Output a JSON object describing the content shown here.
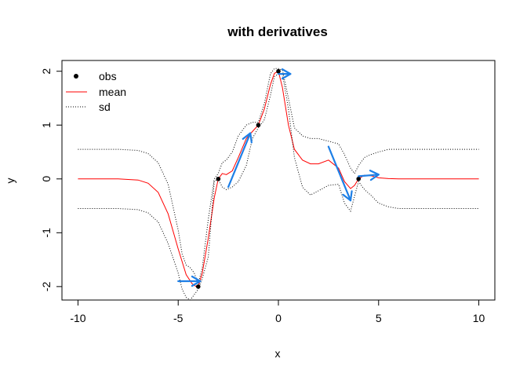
{
  "chart_data": {
    "type": "line",
    "title": "with derivatives",
    "xlabel": "x",
    "ylabel": "y",
    "xlim": [
      -10.8,
      10.8
    ],
    "ylim": [
      -2.25,
      2.2
    ],
    "x_ticks": [
      -10,
      -5,
      0,
      5,
      10
    ],
    "x_tick_labels": [
      "-10",
      "-5",
      "0",
      "5",
      "10"
    ],
    "y_ticks": [
      -2,
      -1,
      0,
      1,
      2
    ],
    "y_tick_labels": [
      "-2",
      "-1",
      "0",
      "1",
      "2"
    ],
    "grid": false,
    "legend": {
      "placement": "top-left",
      "entries": [
        {
          "label": "obs",
          "symbol": "point"
        },
        {
          "label": "mean",
          "symbol": "solid-line",
          "color": "#ff0000"
        },
        {
          "label": "sd",
          "symbol": "dotted-line",
          "color": "#000000"
        }
      ]
    },
    "series": [
      {
        "name": "mean",
        "color": "#ff0000",
        "style": "solid",
        "x": [
          -10,
          -8,
          -7,
          -6.5,
          -6,
          -5.5,
          -5,
          -4.6,
          -4.3,
          -4.1,
          -4,
          -3.8,
          -3.5,
          -3.2,
          -3,
          -2.8,
          -2.6,
          -2.3,
          -2,
          -1.6,
          -1.3,
          -1,
          -0.7,
          -0.4,
          -0.2,
          0,
          0.2,
          0.5,
          0.8,
          1.2,
          1.6,
          2,
          2.5,
          3,
          3.3,
          3.6,
          3.8,
          4,
          4.3,
          4.6,
          5,
          5.5,
          6,
          7,
          10
        ],
        "y": [
          0,
          0,
          -0.02,
          -0.08,
          -0.25,
          -0.65,
          -1.3,
          -1.78,
          -1.95,
          -2.0,
          -2.0,
          -1.75,
          -1.1,
          -0.35,
          0.0,
          0.1,
          0.08,
          0.15,
          0.4,
          0.75,
          0.88,
          1.0,
          1.3,
          1.75,
          1.96,
          2.0,
          1.7,
          1.0,
          0.55,
          0.35,
          0.28,
          0.28,
          0.35,
          0.2,
          -0.05,
          -0.18,
          -0.12,
          0.0,
          0.07,
          0.06,
          0.02,
          0.005,
          0,
          0,
          0
        ]
      },
      {
        "name": "sd",
        "color": "#000000",
        "style": "dotted",
        "x": [
          -10,
          -8,
          -7,
          -6.5,
          -6,
          -5.5,
          -5,
          -4.8,
          -4.6,
          -4.4,
          -4.2,
          -4,
          -3.8,
          -3.5,
          -3.2,
          -3,
          -2.8,
          -2.6,
          -2.3,
          -2,
          -1.6,
          -1.3,
          -1,
          -0.7,
          -0.4,
          -0.2,
          0,
          0.2,
          0.5,
          0.8,
          1.2,
          1.6,
          2,
          2.5,
          3,
          3.3,
          3.6,
          3.8,
          4,
          4.3,
          4.6,
          5,
          5.5,
          6,
          7,
          10
        ],
        "y": [
          0.55,
          0.55,
          0.53,
          0.47,
          0.3,
          -0.1,
          -0.95,
          -1.4,
          -1.6,
          -1.65,
          -1.75,
          -1.95,
          -1.65,
          -0.75,
          0.0,
          0.1,
          0.3,
          0.35,
          0.5,
          0.8,
          1.0,
          1.05,
          1.05,
          1.4,
          1.95,
          2.05,
          2.05,
          2.02,
          1.5,
          0.95,
          0.8,
          0.75,
          0.75,
          0.7,
          0.65,
          0.45,
          0.2,
          0.1,
          0.25,
          0.4,
          0.45,
          0.5,
          0.55,
          0.55,
          0.55,
          0.55
        ]
      },
      {
        "name": "sd",
        "color": "#000000",
        "style": "dotted",
        "x": [
          -10,
          -8,
          -7,
          -6.5,
          -6,
          -5.5,
          -5,
          -4.8,
          -4.6,
          -4.4,
          -4.2,
          -4,
          -3.8,
          -3.5,
          -3.2,
          -3,
          -2.8,
          -2.6,
          -2.3,
          -2,
          -1.6,
          -1.3,
          -1,
          -0.7,
          -0.4,
          -0.2,
          0,
          0.2,
          0.5,
          0.8,
          1.2,
          1.6,
          2,
          2.5,
          3,
          3.3,
          3.6,
          3.8,
          4,
          4.3,
          4.6,
          5,
          5.5,
          6,
          7,
          10
        ],
        "y": [
          -0.55,
          -0.55,
          -0.57,
          -0.63,
          -0.8,
          -1.2,
          -1.75,
          -2.05,
          -2.2,
          -2.25,
          -2.15,
          -2.05,
          -1.85,
          -1.45,
          -0.05,
          0.0,
          -0.15,
          -0.2,
          -0.15,
          -0.05,
          0.25,
          0.75,
          0.95,
          1.1,
          1.55,
          1.9,
          1.95,
          1.95,
          1.3,
          0.4,
          -0.15,
          -0.3,
          -0.22,
          -0.12,
          -0.1,
          -0.45,
          -0.6,
          -0.32,
          -0.05,
          -0.2,
          -0.3,
          -0.45,
          -0.52,
          -0.55,
          -0.55,
          -0.55
        ]
      }
    ],
    "points": {
      "name": "obs",
      "x": [
        -4,
        -3,
        -1,
        0,
        4
      ],
      "y": [
        -2,
        0,
        1,
        2,
        0
      ]
    },
    "derivative_arrows": {
      "color": "#1e7fe6",
      "segments": [
        {
          "x0": -5,
          "y0": -1.9,
          "x1": -3.9,
          "y1": -1.9
        },
        {
          "x0": -2.5,
          "y0": -0.15,
          "x1": -1.4,
          "y1": 0.85
        },
        {
          "x0": 0,
          "y0": 1.95,
          "x1": 0.6,
          "y1": 1.95
        },
        {
          "x0": 2.5,
          "y0": 0.6,
          "x1": 3.6,
          "y1": -0.4
        },
        {
          "x0": 4,
          "y0": 0.05,
          "x1": 5,
          "y1": 0.08
        }
      ]
    }
  }
}
